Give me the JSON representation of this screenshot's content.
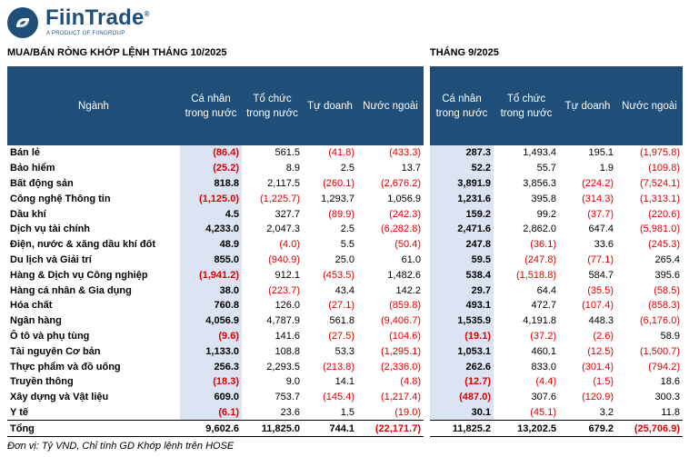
{
  "brand": {
    "name": "FiinTrade",
    "reg": "®",
    "tagline": "A PRODUCT OF FIINGROUP"
  },
  "titles": {
    "left": "MUA/BÁN RÒNG KHỚP LỆNH THÁNG 10/2025",
    "right": "THÁNG 9/2025"
  },
  "headers": {
    "sector": "Ngành",
    "individual": "Cá nhân trong nước",
    "institution": "Tổ chức trong nước",
    "proprietary": "Tự doanh",
    "foreign": "Nước ngoài"
  },
  "rows": [
    {
      "name": "Bán lẻ",
      "oct": [
        "(86.4)",
        "561.5",
        "(41.8)",
        "(433.3)"
      ],
      "sep": [
        "287.3",
        "1,493.4",
        "195.1",
        "(1,975.8)"
      ]
    },
    {
      "name": "Bảo hiểm",
      "oct": [
        "(25.2)",
        "8.9",
        "2.5",
        "13.7"
      ],
      "sep": [
        "52.2",
        "55.7",
        "1.9",
        "(109.8)"
      ]
    },
    {
      "name": "Bất động sản",
      "oct": [
        "818.8",
        "2,117.5",
        "(260.1)",
        "(2,676.2)"
      ],
      "sep": [
        "3,891.9",
        "3,856.3",
        "(224.2)",
        "(7,524.1)"
      ]
    },
    {
      "name": "Công nghệ Thông tin",
      "oct": [
        "(1,125.0)",
        "(1,225.7)",
        "1,293.7",
        "1,056.9"
      ],
      "sep": [
        "1,231.6",
        "395.8",
        "(314.3)",
        "(1,313.1)"
      ]
    },
    {
      "name": "Dầu khí",
      "oct": [
        "4.5",
        "327.7",
        "(89.9)",
        "(242.3)"
      ],
      "sep": [
        "159.2",
        "99.2",
        "(37.7)",
        "(220.6)"
      ]
    },
    {
      "name": "Dịch vụ tài chính",
      "oct": [
        "4,233.0",
        "2,047.3",
        "2.5",
        "(6,282.8)"
      ],
      "sep": [
        "2,471.6",
        "2,862.0",
        "647.4",
        "(5,981.0)"
      ]
    },
    {
      "name": "Điện, nước & xăng dầu khí đốt",
      "oct": [
        "48.9",
        "(4.0)",
        "5.5",
        "(50.4)"
      ],
      "sep": [
        "247.8",
        "(36.1)",
        "33.6",
        "(245.3)"
      ]
    },
    {
      "name": "Du lịch và Giải trí",
      "oct": [
        "855.0",
        "(940.9)",
        "25.0",
        "61.0"
      ],
      "sep": [
        "59.5",
        "(247.8)",
        "(77.1)",
        "265.4"
      ]
    },
    {
      "name": "Hàng & Dịch vụ Công nghiệp",
      "oct": [
        "(1,941.2)",
        "912.1",
        "(453.5)",
        "1,482.6"
      ],
      "sep": [
        "538.4",
        "(1,518.8)",
        "584.7",
        "395.6"
      ]
    },
    {
      "name": "Hàng cá nhân & Gia dụng",
      "oct": [
        "38.0",
        "(223.7)",
        "43.4",
        "142.2"
      ],
      "sep": [
        "29.7",
        "64.4",
        "(35.5)",
        "(58.5)"
      ]
    },
    {
      "name": "Hóa chất",
      "oct": [
        "760.8",
        "126.0",
        "(27.1)",
        "(859.8)"
      ],
      "sep": [
        "493.1",
        "472.7",
        "(107.4)",
        "(858.3)"
      ]
    },
    {
      "name": "Ngân hàng",
      "oct": [
        "4,056.9",
        "4,787.9",
        "561.8",
        "(9,406.7)"
      ],
      "sep": [
        "1,535.9",
        "4,191.8",
        "448.3",
        "(6,176.0)"
      ]
    },
    {
      "name": "Ô tô và phụ tùng",
      "oct": [
        "(9.6)",
        "141.6",
        "(27.5)",
        "(104.6)"
      ],
      "sep": [
        "(19.1)",
        "(37.2)",
        "(2.6)",
        "58.9"
      ]
    },
    {
      "name": "Tài nguyên Cơ bản",
      "oct": [
        "1,133.0",
        "108.8",
        "53.3",
        "(1,295.1)"
      ],
      "sep": [
        "1,053.1",
        "460.1",
        "(12.5)",
        "(1,500.7)"
      ]
    },
    {
      "name": "Thực phẩm và đồ uống",
      "oct": [
        "256.3",
        "2,293.5",
        "(213.8)",
        "(2,336.0)"
      ],
      "sep": [
        "262.6",
        "833.0",
        "(301.4)",
        "(794.2)"
      ]
    },
    {
      "name": "Truyền thông",
      "oct": [
        "(18.3)",
        "9.0",
        "14.1",
        "(4.8)"
      ],
      "sep": [
        "(12.7)",
        "(4.4)",
        "(1.5)",
        "18.6"
      ]
    },
    {
      "name": "Xây dựng và Vật liệu",
      "oct": [
        "609.0",
        "753.7",
        "(145.4)",
        "(1,217.4)"
      ],
      "sep": [
        "(487.0)",
        "307.6",
        "(120.9)",
        "300.3"
      ]
    },
    {
      "name": "Y tế",
      "oct": [
        "(6.1)",
        "23.6",
        "1.5",
        "(19.0)"
      ],
      "sep": [
        "30.1",
        "(45.1)",
        "3.2",
        "11.8"
      ]
    }
  ],
  "total": {
    "name": "Tổng",
    "oct": [
      "9,602.6",
      "11,825.0",
      "744.1",
      "(22,171.7)"
    ],
    "sep": [
      "11,825.2",
      "13,202.5",
      "679.2",
      "(25,706.9)"
    ]
  },
  "footnote": "Đơn vị: Tỷ VND, Chỉ tính GD Khớp lệnh trên HOSE",
  "colors": {
    "header_bg": "#1f4e79",
    "highlight_bg": "#dce3f2",
    "negative": "#e00000"
  }
}
